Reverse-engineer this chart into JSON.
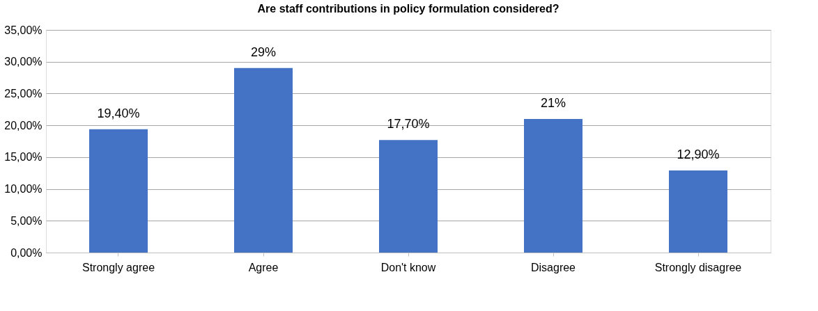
{
  "chart_data": {
    "type": "bar",
    "title": "Are staff contributions in policy formulation considered?",
    "categories": [
      "Strongly agree",
      "Agree",
      "Don't know",
      "Disagree",
      "Strongly disagree"
    ],
    "values": [
      19.4,
      29,
      17.7,
      21,
      12.9
    ],
    "value_labels": [
      "19,40%",
      "29%",
      "17,70%",
      "21%",
      "12,90%"
    ],
    "color": "#4472c4",
    "ylim": [
      0,
      35
    ],
    "yticks": [
      {
        "value": 0,
        "label": "0,00%"
      },
      {
        "value": 5,
        "label": "5,00%"
      },
      {
        "value": 10,
        "label": "10,00%"
      },
      {
        "value": 15,
        "label": "15,00%"
      },
      {
        "value": 20,
        "label": "20,00%"
      },
      {
        "value": 25,
        "label": "25,00%"
      },
      {
        "value": 30,
        "label": "30,00%"
      },
      {
        "value": 35,
        "label": "35,00%"
      }
    ],
    "grid": "y"
  }
}
